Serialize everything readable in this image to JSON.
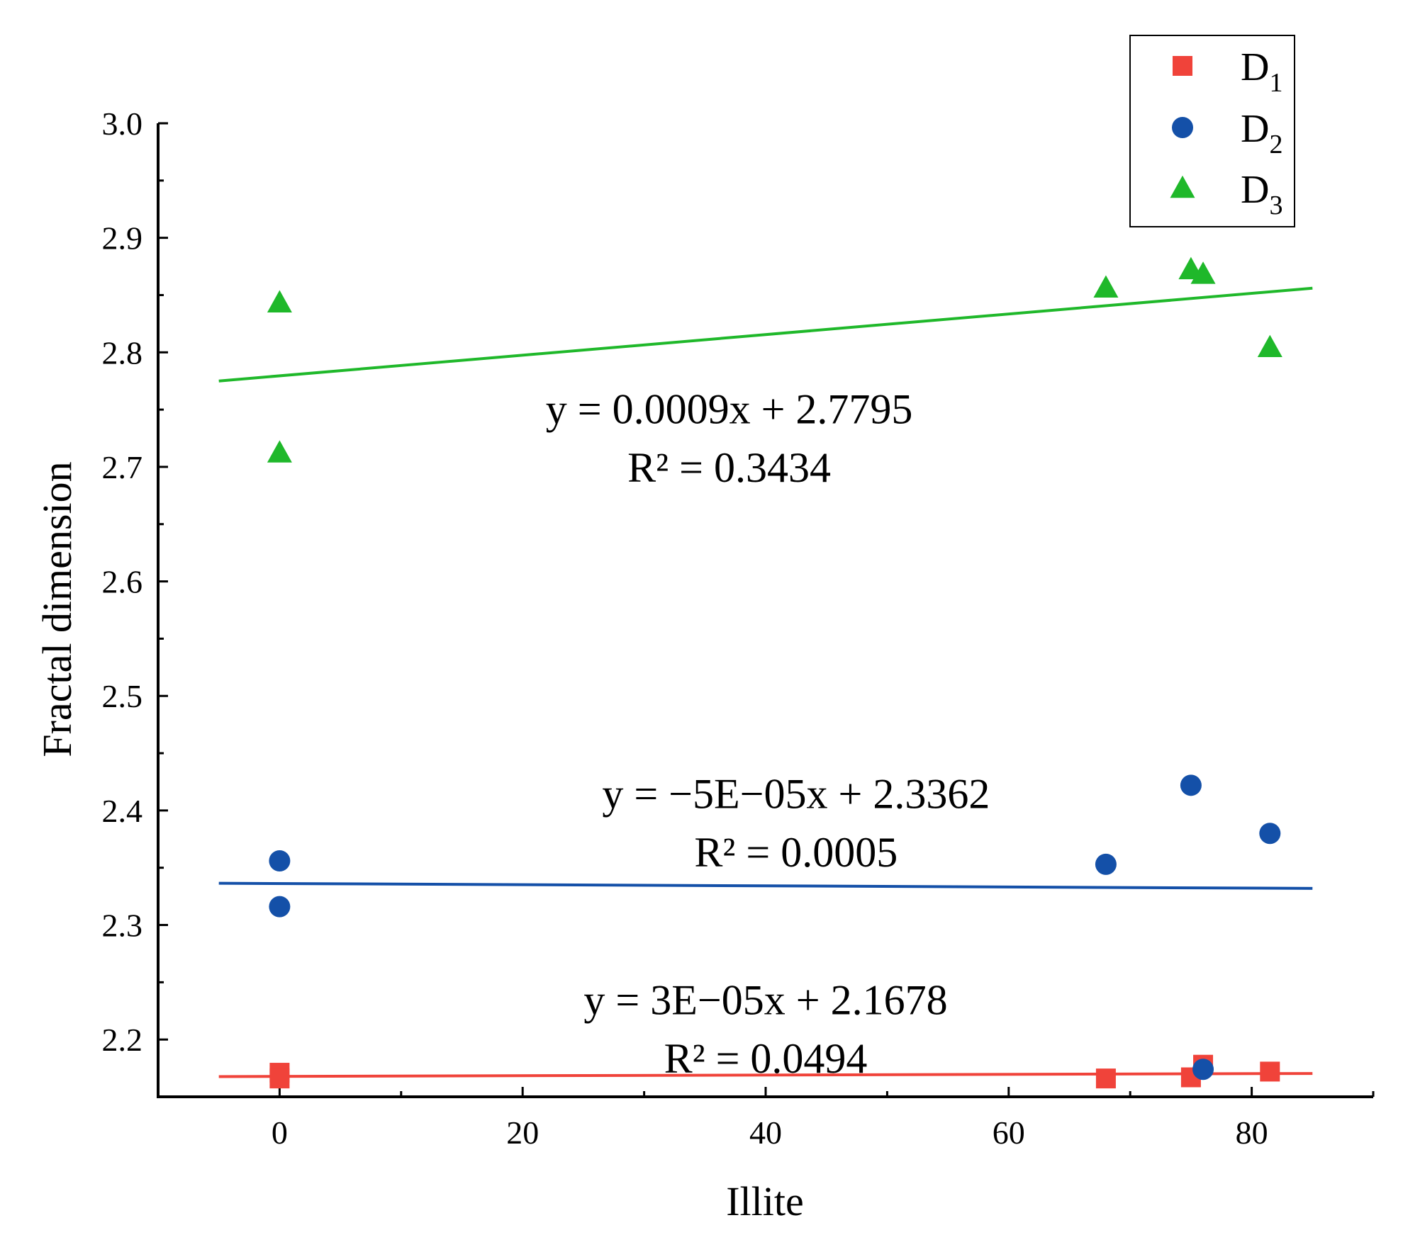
{
  "chart_data": {
    "type": "scatter",
    "xlabel": "Illite",
    "ylabel": "Fractal dimension",
    "xlim": [
      -10,
      90
    ],
    "ylim": [
      2.15,
      3.0
    ],
    "xticks": [
      0,
      20,
      40,
      60,
      80
    ],
    "yticks": [
      2.2,
      2.3,
      2.4,
      2.5,
      2.6,
      2.7,
      2.8,
      2.9,
      3.0
    ],
    "xticks_minor": [
      10,
      30,
      50,
      70,
      90
    ],
    "yticks_minor": [
      2.25,
      2.35,
      2.45,
      2.55,
      2.65,
      2.75,
      2.85,
      2.95
    ],
    "legend_position": "top-right",
    "series": [
      {
        "name": "D1",
        "legend_main": "D",
        "legend_sub": "1",
        "marker": "square",
        "color": "#f0433a",
        "x": [
          0,
          0,
          68,
          75,
          76,
          81.5
        ],
        "y": [
          2.171,
          2.166,
          2.166,
          2.167,
          2.178,
          2.172
        ],
        "fit": {
          "slope": 3e-05,
          "intercept": 2.1678,
          "x_range": [
            -5,
            85
          ],
          "equation": "y = 3E−05x + 2.1678",
          "r2": "R² = 0.0494",
          "label_x": 40,
          "label_y_eq": 2.222,
          "label_y_r2": 2.171
        }
      },
      {
        "name": "D2",
        "legend_main": "D",
        "legend_sub": "2",
        "marker": "circle",
        "color": "#1450a8",
        "x": [
          0,
          0,
          68,
          75,
          76,
          81.5
        ],
        "y": [
          2.356,
          2.316,
          2.353,
          2.422,
          2.174,
          2.38
        ],
        "fit": {
          "slope": -5e-05,
          "intercept": 2.3362,
          "x_range": [
            -5,
            85
          ],
          "equation": "y = −5E−05x + 2.3362",
          "r2": "R² = 0.0005",
          "label_x": 42.5,
          "label_y_eq": 2.402,
          "label_y_r2": 2.351
        }
      },
      {
        "name": "D3",
        "legend_main": "D",
        "legend_sub": "3",
        "marker": "triangle",
        "color": "#1fb82a",
        "x": [
          0,
          0,
          68,
          75,
          76,
          81.5
        ],
        "y": [
          2.843,
          2.712,
          2.856,
          2.872,
          2.868,
          2.804
        ],
        "fit": {
          "slope": 0.0009,
          "intercept": 2.7795,
          "x_range": [
            -5,
            85
          ],
          "equation": "y = 0.0009x + 2.7795",
          "r2": "R² = 0.3434",
          "label_x": 37,
          "label_y_eq": 2.738,
          "label_y_r2": 2.687
        }
      }
    ]
  }
}
